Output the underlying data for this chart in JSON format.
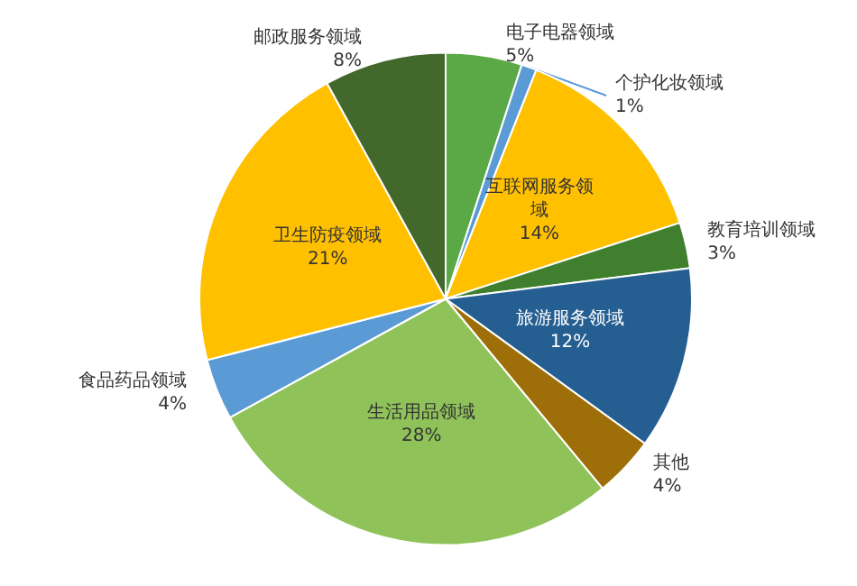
{
  "chart_data": {
    "type": "pie",
    "categories": [
      "电子电器领域",
      "个护化妆领域",
      "互联网服务领域",
      "教育培训领域",
      "旅游服务领域",
      "其他",
      "生活用品领域",
      "食品药品领域",
      "卫生防疫领域",
      "邮政服务领域"
    ],
    "values": [
      5,
      1,
      14,
      3,
      12,
      4,
      28,
      4,
      21,
      8
    ],
    "colors": [
      "#5aa846",
      "#5b9bd5",
      "#ffc000",
      "#3f7f2e",
      "#255e91",
      "#9e6f08",
      "#8fc35a",
      "#5b9bd5",
      "#ffc000",
      "#43682b"
    ],
    "value_labels": [
      "5%",
      "1%",
      "14%",
      "3%",
      "12%",
      "4%",
      "28%",
      "4%",
      "21%",
      "8%"
    ],
    "legend": false
  }
}
